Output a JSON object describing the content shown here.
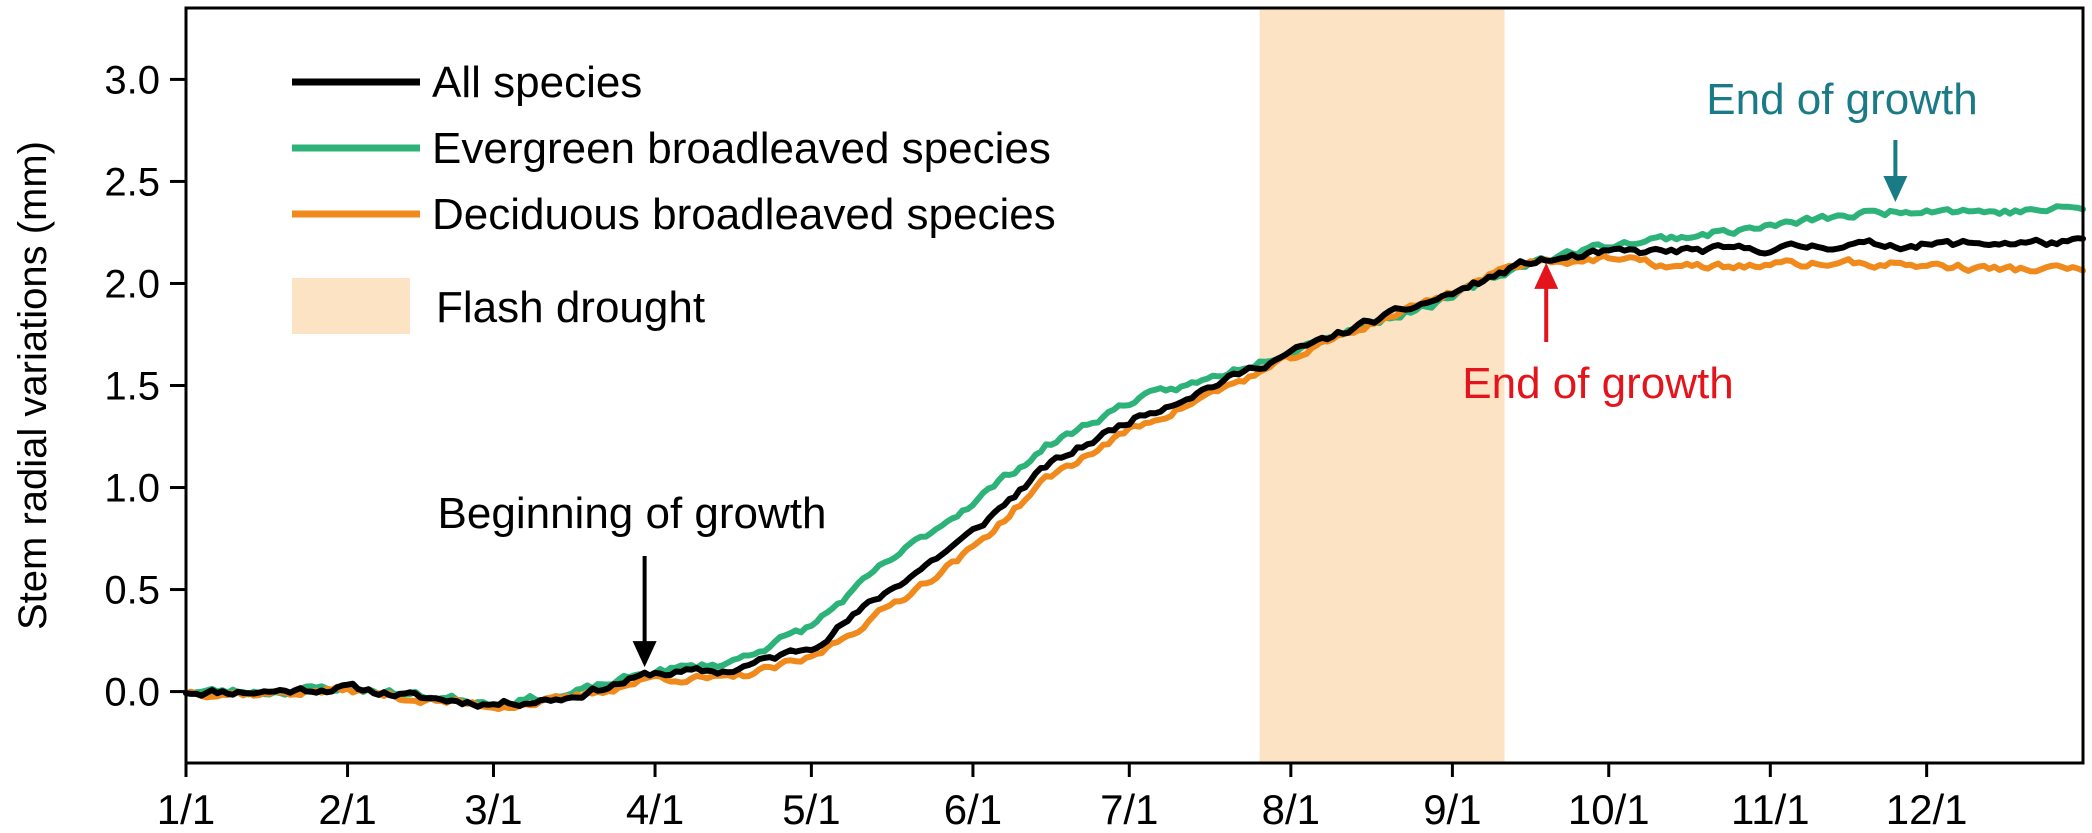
{
  "chart_data": {
    "type": "line",
    "title": "",
    "xlabel": "",
    "ylabel": "Stem radial variations (mm)",
    "xlim": [
      "1/1",
      "12/31"
    ],
    "ylim": [
      -0.35,
      3.35
    ],
    "x_ticks": [
      "1/1",
      "2/1",
      "3/1",
      "4/1",
      "5/1",
      "6/1",
      "7/1",
      "8/1",
      "9/1",
      "10/1",
      "11/1",
      "12/1"
    ],
    "y_ticks": [
      "0.0",
      "0.5",
      "1.0",
      "1.5",
      "2.0",
      "2.5",
      "3.0"
    ],
    "grid": false,
    "legend_position": "top-left",
    "series": [
      {
        "name": "All species",
        "color": "#000000",
        "points": [
          [
            "1/1",
            0.0
          ],
          [
            "1/16",
            0.0
          ],
          [
            "2/1",
            0.02
          ],
          [
            "2/15",
            -0.03
          ],
          [
            "3/1",
            -0.06
          ],
          [
            "3/15",
            -0.03
          ],
          [
            "4/1",
            0.09
          ],
          [
            "4/15",
            0.1
          ],
          [
            "5/1",
            0.22
          ],
          [
            "5/15",
            0.48
          ],
          [
            "6/1",
            0.78
          ],
          [
            "6/15",
            1.1
          ],
          [
            "7/1",
            1.33
          ],
          [
            "7/15",
            1.48
          ],
          [
            "8/1",
            1.66
          ],
          [
            "8/15",
            1.8
          ],
          [
            "9/1",
            1.95
          ],
          [
            "9/15",
            2.1
          ],
          [
            "10/1",
            2.15
          ],
          [
            "10/15",
            2.16
          ],
          [
            "11/1",
            2.17
          ],
          [
            "11/15",
            2.19
          ],
          [
            "12/1",
            2.19
          ],
          [
            "12/15",
            2.2
          ],
          [
            "12/31",
            2.2
          ]
        ]
      },
      {
        "name": "Evergreen broadleaved species",
        "color": "#2db37a",
        "points": [
          [
            "1/1",
            0.0
          ],
          [
            "1/16",
            0.0
          ],
          [
            "2/1",
            0.02
          ],
          [
            "2/15",
            -0.02
          ],
          [
            "3/1",
            -0.05
          ],
          [
            "3/15",
            -0.02
          ],
          [
            "4/1",
            0.1
          ],
          [
            "4/15",
            0.14
          ],
          [
            "5/1",
            0.32
          ],
          [
            "5/15",
            0.62
          ],
          [
            "6/1",
            0.93
          ],
          [
            "6/15",
            1.2
          ],
          [
            "7/1",
            1.42
          ],
          [
            "7/15",
            1.52
          ],
          [
            "8/1",
            1.68
          ],
          [
            "8/15",
            1.8
          ],
          [
            "9/1",
            1.93
          ],
          [
            "9/15",
            2.1
          ],
          [
            "10/1",
            2.19
          ],
          [
            "10/15",
            2.23
          ],
          [
            "11/1",
            2.28
          ],
          [
            "11/15",
            2.33
          ],
          [
            "12/1",
            2.37
          ],
          [
            "12/15",
            2.35
          ],
          [
            "12/31",
            2.37
          ]
        ]
      },
      {
        "name": "Deciduous broadleaved species",
        "color": "#f08a1c",
        "points": [
          [
            "1/1",
            0.0
          ],
          [
            "1/16",
            -0.01
          ],
          [
            "2/1",
            0.01
          ],
          [
            "2/15",
            -0.04
          ],
          [
            "3/1",
            -0.07
          ],
          [
            "3/15",
            -0.04
          ],
          [
            "4/1",
            0.07
          ],
          [
            "4/15",
            0.06
          ],
          [
            "5/1",
            0.16
          ],
          [
            "5/15",
            0.4
          ],
          [
            "6/1",
            0.7
          ],
          [
            "6/15",
            1.04
          ],
          [
            "7/1",
            1.28
          ],
          [
            "7/15",
            1.44
          ],
          [
            "8/1",
            1.63
          ],
          [
            "8/15",
            1.79
          ],
          [
            "9/1",
            1.96
          ],
          [
            "9/15",
            2.11
          ],
          [
            "10/1",
            2.12
          ],
          [
            "10/15",
            2.08
          ],
          [
            "11/1",
            2.09
          ],
          [
            "11/15",
            2.1
          ],
          [
            "12/1",
            2.09
          ],
          [
            "12/15",
            2.07
          ],
          [
            "12/31",
            2.07
          ]
        ]
      }
    ],
    "shaded_region": {
      "name": "Flash drought",
      "x_start": "7/26",
      "x_end": "9/11",
      "color": "#fbe3c3"
    },
    "annotations": [
      {
        "text": "Beginning of growth",
        "x": "3/30",
        "y": 0.1,
        "color": "#000000"
      },
      {
        "text": "End of growth",
        "x": "9/19",
        "y": 2.14,
        "color": "#e3141b"
      },
      {
        "text": "End of growth",
        "x": "11/25",
        "y": 2.37,
        "color": "#1a7b86"
      }
    ]
  }
}
